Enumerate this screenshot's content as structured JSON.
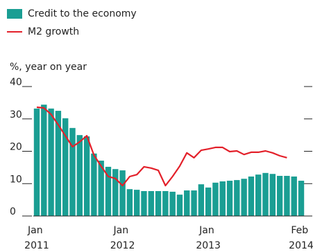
{
  "chart_data": {
    "type": "bar",
    "y_axis_label": "%, year on year",
    "categories": [
      "Jan 2011",
      null,
      null,
      null,
      null,
      null,
      null,
      null,
      null,
      null,
      null,
      null,
      "Jan 2012",
      null,
      null,
      null,
      null,
      null,
      null,
      null,
      null,
      null,
      null,
      null,
      "Jan 2013",
      null,
      null,
      null,
      null,
      null,
      null,
      null,
      null,
      null,
      null,
      null,
      null,
      "Feb 2014"
    ],
    "series": [
      {
        "name": "Credit to the economy",
        "color": "#1a9e93",
        "type": "bar",
        "values": [
          33.2,
          34.4,
          33.2,
          32.5,
          30.2,
          27.2,
          25,
          24.6,
          19.3,
          17.1,
          15.2,
          14.5,
          14.1,
          8.3,
          8.1,
          7.7,
          7.7,
          7.7,
          7.7,
          7.5,
          6.6,
          7.9,
          7.9,
          9.8,
          8.8,
          10.3,
          10.7,
          10.9,
          11.1,
          11.5,
          12.2,
          12.8,
          13.3,
          13,
          12.4,
          12.4,
          12.2,
          10.9
        ]
      },
      {
        "name": "M2 growth",
        "color": "#e3202a",
        "type": "line",
        "values": [
          33.6,
          33.4,
          31.4,
          28.2,
          24.8,
          21.4,
          22.9,
          24.8,
          18.8,
          15.4,
          12.2,
          11.6,
          9.4,
          12.2,
          12.8,
          15.2,
          14.8,
          14.1,
          9.4,
          12.2,
          15.4,
          19.5,
          18,
          20.3,
          20.7,
          21.2,
          21.2,
          19.9,
          20.1,
          19,
          19.7,
          19.7,
          20.1,
          19.5,
          18.6,
          18,
          null,
          null
        ]
      }
    ],
    "ylim": [
      0,
      40
    ],
    "yticks": [
      0,
      10,
      20,
      30,
      40
    ],
    "legend": "top-left"
  }
}
